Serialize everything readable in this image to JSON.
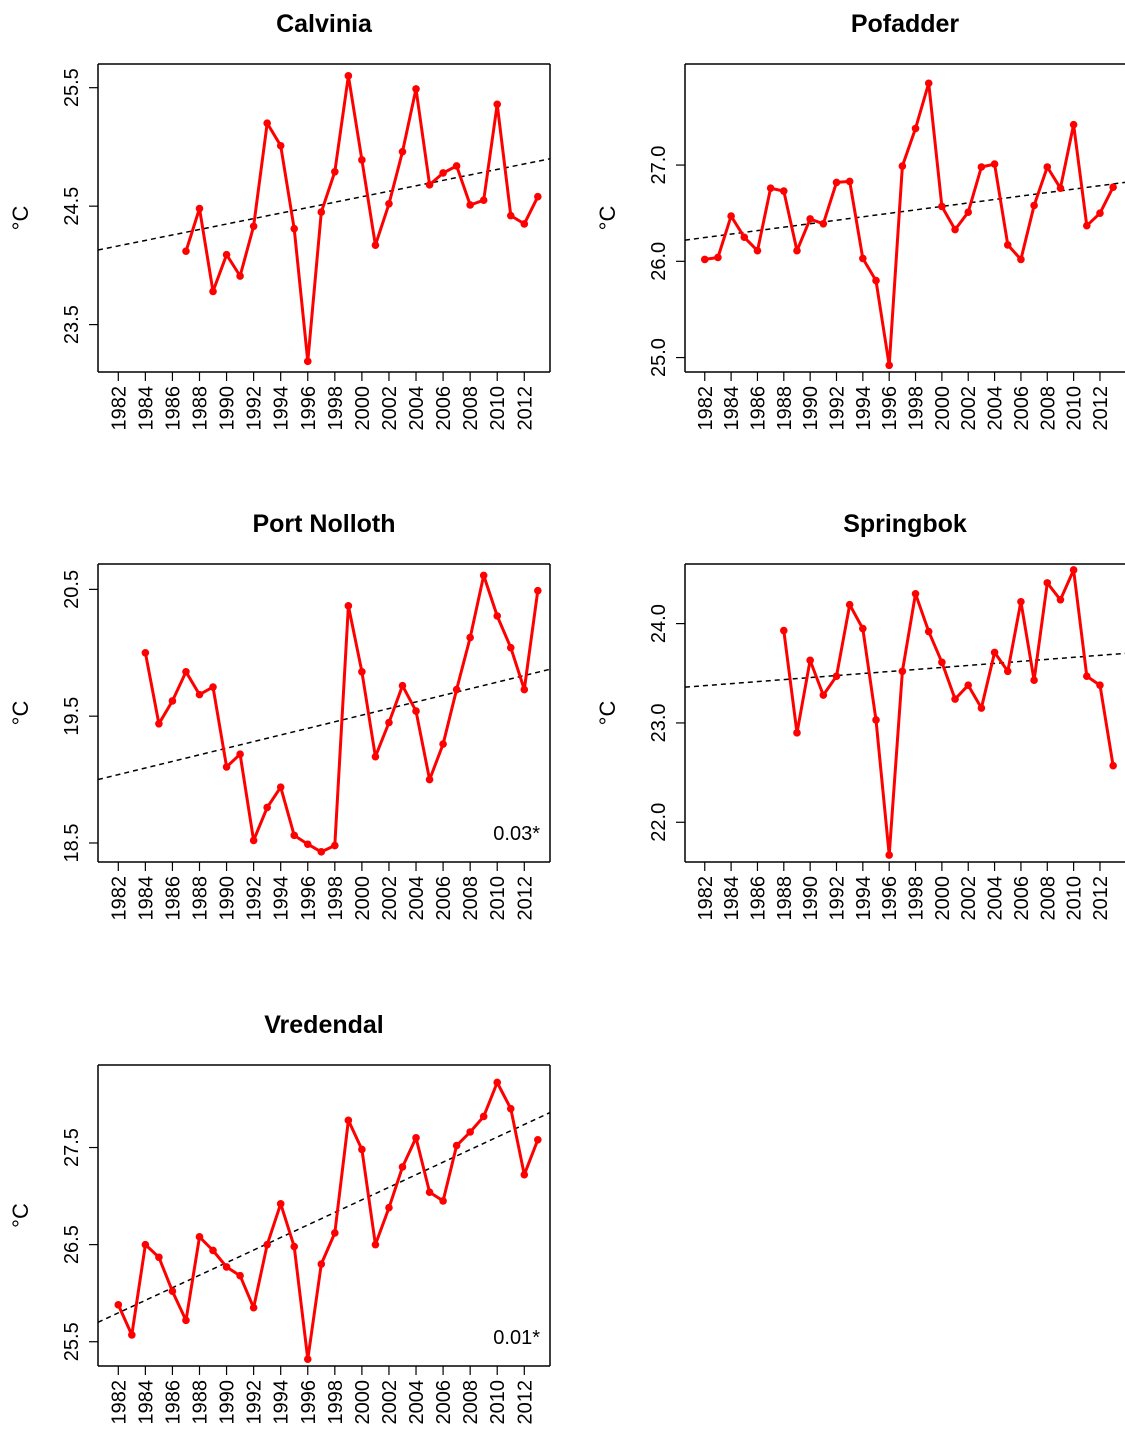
{
  "chart_data": [
    {
      "type": "line",
      "title": "Calvinia",
      "ylabel": "°C",
      "xlim": [
        1980.5,
        2013.9
      ],
      "ylim": [
        23.1,
        25.7
      ],
      "yticks": [
        23.5,
        24.5,
        25.5
      ],
      "ytick_labels": [
        "23.5",
        "24.5",
        "25.5"
      ],
      "xticks": [
        1982,
        1984,
        1986,
        1988,
        1990,
        1992,
        1994,
        1996,
        1998,
        2000,
        2002,
        2004,
        2006,
        2008,
        2010,
        2012
      ],
      "xtick_labels": [
        "1982",
        "1984",
        "1986",
        "1988",
        "1990",
        "1992",
        "1994",
        "1996",
        "1998",
        "2000",
        "2002",
        "2004",
        "2006",
        "2008",
        "2010",
        "2012"
      ],
      "series": [
        {
          "x": [
            1987,
            1988,
            1989,
            1990,
            1991,
            1992,
            1993,
            1994,
            1995,
            1996,
            1997,
            1998,
            1999,
            2000,
            2001,
            2002,
            2003,
            2004,
            2005,
            2006,
            2007,
            2008,
            2009,
            2010,
            2011,
            2012,
            2013
          ],
          "y": [
            24.12,
            24.48,
            23.78,
            24.09,
            23.91,
            24.33,
            25.2,
            25.01,
            24.31,
            23.19,
            24.45,
            24.79,
            25.6,
            24.89,
            24.17,
            24.52,
            24.96,
            25.49,
            24.68,
            24.78,
            24.84,
            24.51,
            24.55,
            25.36,
            24.42,
            24.35,
            24.58
          ]
        }
      ],
      "trend": [
        [
          1980.5,
          24.13
        ],
        [
          2013.9,
          24.9
        ]
      ],
      "annotation": ""
    },
    {
      "type": "line",
      "title": "Pofadder",
      "ylabel": "°C",
      "xlim": [
        1980.5,
        2013.9
      ],
      "ylim": [
        24.85,
        28.05
      ],
      "yticks": [
        25.0,
        26.0,
        27.0
      ],
      "ytick_labels": [
        "25.0",
        "26.0",
        "27.0"
      ],
      "xticks": [
        1982,
        1984,
        1986,
        1988,
        1990,
        1992,
        1994,
        1996,
        1998,
        2000,
        2002,
        2004,
        2006,
        2008,
        2010,
        2012
      ],
      "xtick_labels": [
        "1982",
        "1984",
        "1986",
        "1988",
        "1990",
        "1992",
        "1994",
        "1996",
        "1998",
        "2000",
        "2002",
        "2004",
        "2006",
        "2008",
        "2010",
        "2012"
      ],
      "series": [
        {
          "x": [
            1982,
            1983,
            1984,
            1985,
            1986,
            1987,
            1988,
            1989,
            1990,
            1991,
            1992,
            1993,
            1994,
            1995,
            1996,
            1997,
            1998,
            1999,
            2000,
            2001,
            2002,
            2003,
            2004,
            2005,
            2006,
            2007,
            2008,
            2009,
            2010,
            2011,
            2012,
            2013
          ],
          "y": [
            26.02,
            26.04,
            26.47,
            26.25,
            26.11,
            26.76,
            26.73,
            26.11,
            26.44,
            26.39,
            26.82,
            26.83,
            26.03,
            25.8,
            24.92,
            26.99,
            27.38,
            27.85,
            26.57,
            26.33,
            26.51,
            26.98,
            27.01,
            26.17,
            26.02,
            26.58,
            26.98,
            26.76,
            27.42,
            26.37,
            26.5,
            26.77
          ]
        }
      ],
      "trend": [
        [
          1980.5,
          26.22
        ],
        [
          2013.9,
          26.82
        ]
      ],
      "annotation": ""
    },
    {
      "type": "line",
      "title": "Port Nolloth",
      "ylabel": "°C",
      "xlim": [
        1980.5,
        2013.9
      ],
      "ylim": [
        18.35,
        20.7
      ],
      "yticks": [
        18.5,
        19.5,
        20.5
      ],
      "ytick_labels": [
        "18.5",
        "19.5",
        "20.5"
      ],
      "xticks": [
        1982,
        1984,
        1986,
        1988,
        1990,
        1992,
        1994,
        1996,
        1998,
        2000,
        2002,
        2004,
        2006,
        2008,
        2010,
        2012
      ],
      "xtick_labels": [
        "1982",
        "1984",
        "1986",
        "1988",
        "1990",
        "1992",
        "1994",
        "1996",
        "1998",
        "2000",
        "2002",
        "2004",
        "2006",
        "2008",
        "2010",
        "2012"
      ],
      "series": [
        {
          "x": [
            1984,
            1985,
            1986,
            1987,
            1988,
            1989,
            1990,
            1991,
            1992,
            1993,
            1994,
            1995,
            1996,
            1997,
            1998,
            1999,
            2000,
            2001,
            2002,
            2003,
            2004,
            2005,
            2006,
            2007,
            2008,
            2009,
            2010,
            2011,
            2012,
            2013
          ],
          "y": [
            20.0,
            19.44,
            19.62,
            19.85,
            19.67,
            19.73,
            19.1,
            19.2,
            18.52,
            18.78,
            18.94,
            18.56,
            18.49,
            18.43,
            18.48,
            20.37,
            19.85,
            19.18,
            19.45,
            19.74,
            19.54,
            19.0,
            19.28,
            19.71,
            20.12,
            20.61,
            20.29,
            20.04,
            19.71,
            20.49
          ]
        }
      ],
      "trend": [
        [
          1980.5,
          19.0
        ],
        [
          2013.9,
          19.87
        ]
      ],
      "annotation": "0.03*"
    },
    {
      "type": "line",
      "title": "Springbok",
      "ylabel": "°C",
      "xlim": [
        1980.5,
        2013.9
      ],
      "ylim": [
        21.6,
        24.6
      ],
      "yticks": [
        22.0,
        23.0,
        24.0
      ],
      "ytick_labels": [
        "22.0",
        "23.0",
        "24.0"
      ],
      "xticks": [
        1982,
        1984,
        1986,
        1988,
        1990,
        1992,
        1994,
        1996,
        1998,
        2000,
        2002,
        2004,
        2006,
        2008,
        2010,
        2012
      ],
      "xtick_labels": [
        "1982",
        "1984",
        "1986",
        "1988",
        "1990",
        "1992",
        "1994",
        "1996",
        "1998",
        "2000",
        "2002",
        "2004",
        "2006",
        "2008",
        "2010",
        "2012"
      ],
      "series": [
        {
          "x": [
            1988,
            1989,
            1990,
            1991,
            1992,
            1993,
            1994,
            1995,
            1996,
            1997,
            1998,
            1999,
            2000,
            2001,
            2002,
            2003,
            2004,
            2005,
            2006,
            2007,
            2008,
            2009,
            2010,
            2011,
            2012,
            2013
          ],
          "y": [
            23.93,
            22.9,
            23.63,
            23.28,
            23.47,
            24.19,
            23.95,
            23.03,
            21.67,
            23.52,
            24.3,
            23.92,
            23.61,
            23.24,
            23.38,
            23.15,
            23.71,
            23.52,
            24.22,
            23.43,
            24.41,
            24.24,
            24.54,
            23.47,
            23.38,
            22.57
          ]
        }
      ],
      "trend": [
        [
          1980.5,
          23.36
        ],
        [
          2013.9,
          23.7
        ]
      ],
      "annotation": ""
    },
    {
      "type": "line",
      "title": "Vredendal",
      "ylabel": "°C",
      "xlim": [
        1980.5,
        2013.9
      ],
      "ylim": [
        25.25,
        28.35
      ],
      "yticks": [
        25.5,
        26.5,
        27.5
      ],
      "ytick_labels": [
        "25.5",
        "26.5",
        "27.5"
      ],
      "xticks": [
        1982,
        1984,
        1986,
        1988,
        1990,
        1992,
        1994,
        1996,
        1998,
        2000,
        2002,
        2004,
        2006,
        2008,
        2010,
        2012
      ],
      "xtick_labels": [
        "1982",
        "1984",
        "1986",
        "1988",
        "1990",
        "1992",
        "1994",
        "1996",
        "1998",
        "2000",
        "2002",
        "2004",
        "2006",
        "2008",
        "2010",
        "2012"
      ],
      "series": [
        {
          "x": [
            1982,
            1983,
            1984,
            1985,
            1986,
            1987,
            1988,
            1989,
            1990,
            1991,
            1992,
            1993,
            1994,
            1995,
            1996,
            1997,
            1998,
            1999,
            2000,
            2001,
            2002,
            2003,
            2004,
            2005,
            2006,
            2007,
            2008,
            2009,
            2010,
            2011,
            2012,
            2013
          ],
          "y": [
            25.88,
            25.57,
            26.5,
            26.37,
            26.02,
            25.72,
            26.58,
            26.44,
            26.27,
            26.18,
            25.85,
            26.5,
            26.92,
            26.48,
            25.32,
            26.3,
            26.62,
            27.78,
            27.48,
            26.5,
            26.88,
            27.3,
            27.6,
            27.04,
            26.95,
            27.52,
            27.66,
            27.82,
            28.17,
            27.9,
            27.22,
            27.58
          ]
        }
      ],
      "trend": [
        [
          1980.5,
          25.7
        ],
        [
          2013.9,
          27.86
        ]
      ],
      "annotation": "0.01*"
    }
  ],
  "colors": {
    "series": "#ff0000",
    "trend": "#000000",
    "axis": "#000000"
  }
}
